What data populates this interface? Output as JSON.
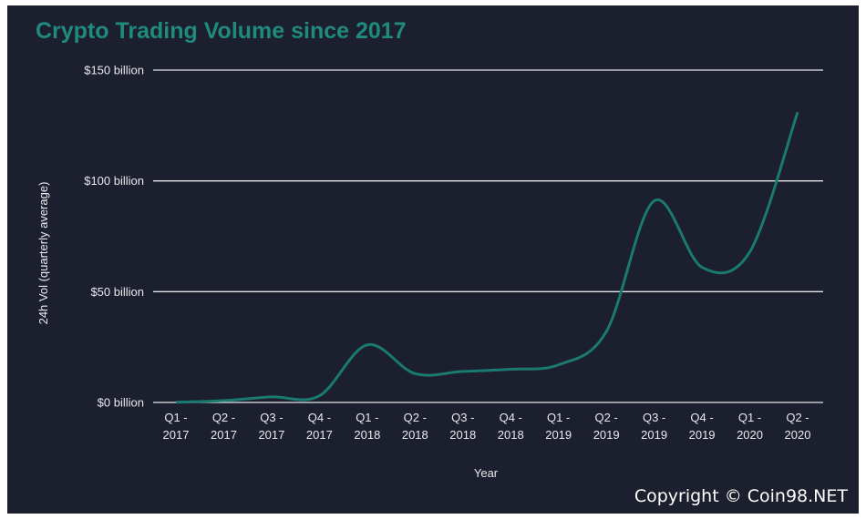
{
  "chart_data": {
    "type": "line",
    "title": "Crypto Trading Volume since 2017",
    "xlabel": "Year",
    "ylabel": "24h Vol (quarterly average)",
    "categories": [
      [
        "Q1 -",
        "2017"
      ],
      [
        "Q2 -",
        "2017"
      ],
      [
        "Q3 -",
        "2017"
      ],
      [
        "Q4 -",
        "2017"
      ],
      [
        "Q1 -",
        "2018"
      ],
      [
        "Q2 -",
        "2018"
      ],
      [
        "Q3 -",
        "2018"
      ],
      [
        "Q4 -",
        "2018"
      ],
      [
        "Q1 -",
        "2019"
      ],
      [
        "Q2 -",
        "2019"
      ],
      [
        "Q3 -",
        "2019"
      ],
      [
        "Q4 -",
        "2019"
      ],
      [
        "Q1 -",
        "2020"
      ],
      [
        "Q2 -",
        "2020"
      ]
    ],
    "values": [
      0.1,
      0.8,
      2.5,
      3,
      26,
      13,
      14,
      15,
      17,
      32,
      91,
      61,
      68,
      131
    ],
    "ylim": [
      0,
      150
    ],
    "yticks": [
      0,
      50,
      100,
      150
    ],
    "ytick_labels": [
      "$0 billion",
      "$50 billion",
      "$100 billion",
      "$150 billion"
    ],
    "grid": "horizontal",
    "line_color": "#1a7a70",
    "background": "#1c1f2e",
    "title_color": "#1f8a7e"
  },
  "watermark": "Copyright © Coin98.NET"
}
